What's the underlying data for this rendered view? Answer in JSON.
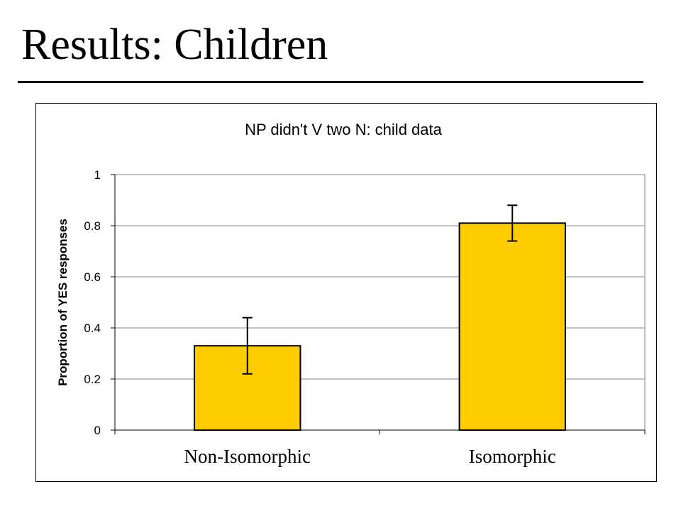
{
  "slide": {
    "title": "Results: Children"
  },
  "colors": {
    "bar_fill": "#FFCC00",
    "bar_stroke": "#000000",
    "grid": "#808080"
  },
  "chart_data": {
    "type": "bar",
    "title": "NP didn't V two N: child data",
    "ylabel": "Proportion of YES responses",
    "xlabel": "",
    "categories": [
      "Non-Isomorphic",
      "Isomorphic"
    ],
    "values": [
      0.33,
      0.81
    ],
    "error_low": [
      0.22,
      0.74
    ],
    "error_high": [
      0.44,
      0.88
    ],
    "ylim": [
      0,
      1
    ],
    "yticks": [
      {
        "value": 0,
        "label": "0"
      },
      {
        "value": 0.2,
        "label": "0.2"
      },
      {
        "value": 0.4,
        "label": "0.4"
      },
      {
        "value": 0.6,
        "label": "0.6"
      },
      {
        "value": 0.8,
        "label": "0.8"
      },
      {
        "value": 1,
        "label": "1"
      }
    ],
    "grid": true,
    "legend": "none"
  }
}
